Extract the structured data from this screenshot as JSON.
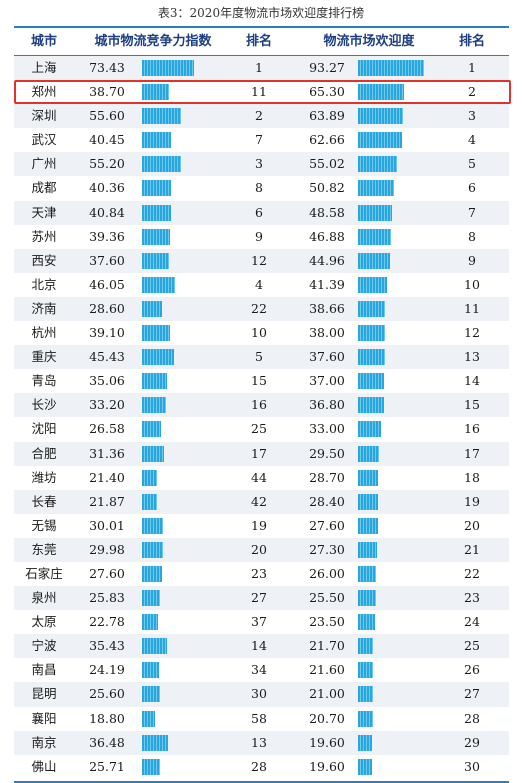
{
  "title": "表3：2020年度物流市场欢迎度排行榜",
  "headers": {
    "city": "城市",
    "index": "城市物流竞争力指数",
    "rank1": "排名",
    "popularity": "物流市场欢迎度",
    "rank2": "排名"
  },
  "highlight_city": "郑州",
  "colors": {
    "bar": "#2aa6df",
    "highlight": "#e0332b",
    "header_text": "#1d3f82",
    "rule": "#2a7fc0"
  },
  "rows": [
    {
      "city": "上海",
      "index": "73.43",
      "rank1": "1",
      "popularity": "93.27",
      "rank2": "1"
    },
    {
      "city": "郑州",
      "index": "38.70",
      "rank1": "11",
      "popularity": "65.30",
      "rank2": "2"
    },
    {
      "city": "深圳",
      "index": "55.60",
      "rank1": "2",
      "popularity": "63.89",
      "rank2": "3"
    },
    {
      "city": "武汉",
      "index": "40.45",
      "rank1": "7",
      "popularity": "62.66",
      "rank2": "4"
    },
    {
      "city": "广州",
      "index": "55.20",
      "rank1": "3",
      "popularity": "55.02",
      "rank2": "5"
    },
    {
      "city": "成都",
      "index": "40.36",
      "rank1": "8",
      "popularity": "50.82",
      "rank2": "6"
    },
    {
      "city": "天津",
      "index": "40.84",
      "rank1": "6",
      "popularity": "48.58",
      "rank2": "7"
    },
    {
      "city": "苏州",
      "index": "39.36",
      "rank1": "9",
      "popularity": "46.88",
      "rank2": "8"
    },
    {
      "city": "西安",
      "index": "37.60",
      "rank1": "12",
      "popularity": "44.96",
      "rank2": "9"
    },
    {
      "city": "北京",
      "index": "46.05",
      "rank1": "4",
      "popularity": "41.39",
      "rank2": "10"
    },
    {
      "city": "济南",
      "index": "28.60",
      "rank1": "22",
      "popularity": "38.66",
      "rank2": "11"
    },
    {
      "city": "杭州",
      "index": "39.10",
      "rank1": "10",
      "popularity": "38.00",
      "rank2": "12"
    },
    {
      "city": "重庆",
      "index": "45.43",
      "rank1": "5",
      "popularity": "37.60",
      "rank2": "13"
    },
    {
      "city": "青岛",
      "index": "35.06",
      "rank1": "15",
      "popularity": "37.00",
      "rank2": "14"
    },
    {
      "city": "长沙",
      "index": "33.20",
      "rank1": "16",
      "popularity": "36.80",
      "rank2": "15"
    },
    {
      "city": "沈阳",
      "index": "26.58",
      "rank1": "25",
      "popularity": "33.00",
      "rank2": "16"
    },
    {
      "city": "合肥",
      "index": "31.36",
      "rank1": "17",
      "popularity": "29.50",
      "rank2": "17"
    },
    {
      "city": "潍坊",
      "index": "21.40",
      "rank1": "44",
      "popularity": "28.70",
      "rank2": "18"
    },
    {
      "city": "长春",
      "index": "21.87",
      "rank1": "42",
      "popularity": "28.40",
      "rank2": "19"
    },
    {
      "city": "无锡",
      "index": "30.01",
      "rank1": "19",
      "popularity": "27.60",
      "rank2": "20"
    },
    {
      "city": "东莞",
      "index": "29.98",
      "rank1": "20",
      "popularity": "27.30",
      "rank2": "21"
    },
    {
      "city": "石家庄",
      "index": "27.60",
      "rank1": "23",
      "popularity": "26.00",
      "rank2": "22"
    },
    {
      "city": "泉州",
      "index": "25.83",
      "rank1": "27",
      "popularity": "25.50",
      "rank2": "23"
    },
    {
      "city": "太原",
      "index": "22.78",
      "rank1": "37",
      "popularity": "23.50",
      "rank2": "24"
    },
    {
      "city": "宁波",
      "index": "35.43",
      "rank1": "14",
      "popularity": "21.70",
      "rank2": "25"
    },
    {
      "city": "南昌",
      "index": "24.19",
      "rank1": "34",
      "popularity": "21.60",
      "rank2": "26"
    },
    {
      "city": "昆明",
      "index": "25.60",
      "rank1": "30",
      "popularity": "21.00",
      "rank2": "27"
    },
    {
      "city": "襄阳",
      "index": "18.80",
      "rank1": "58",
      "popularity": "20.70",
      "rank2": "28"
    },
    {
      "city": "南京",
      "index": "36.48",
      "rank1": "13",
      "popularity": "19.60",
      "rank2": "29"
    },
    {
      "city": "佛山",
      "index": "25.71",
      "rank1": "28",
      "popularity": "19.60",
      "rank2": "30"
    }
  ]
}
